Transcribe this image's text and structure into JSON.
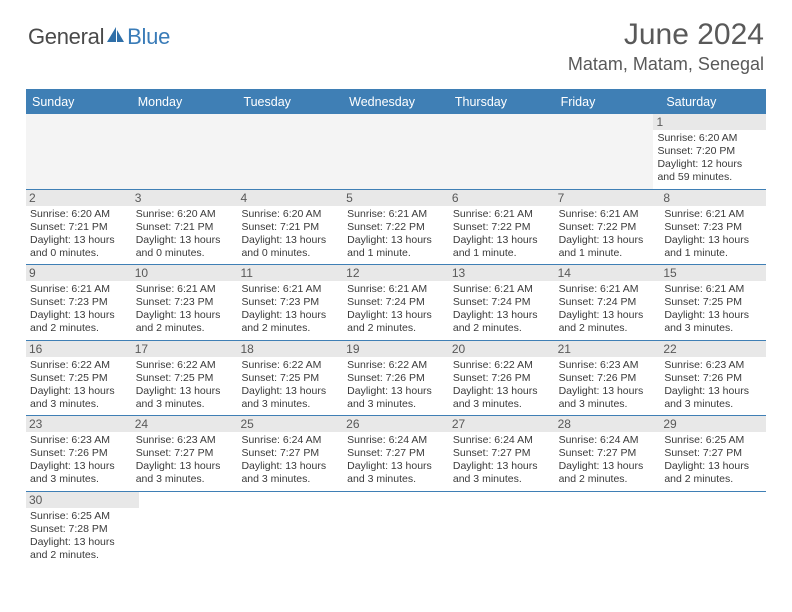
{
  "logo": {
    "part1": "General",
    "part2": "Blue"
  },
  "title": "June 2024",
  "location": "Matam, Matam, Senegal",
  "colors": {
    "header_bg": "#3f7fb5",
    "header_text": "#ffffff",
    "daynum_bg": "#e8e8e8",
    "text_gray": "#595959",
    "info_text": "#3a3a3a",
    "border": "#3f7fb5",
    "logo_blue": "#3a7cb8"
  },
  "day_headers": [
    "Sunday",
    "Monday",
    "Tuesday",
    "Wednesday",
    "Thursday",
    "Friday",
    "Saturday"
  ],
  "weeks": [
    [
      null,
      null,
      null,
      null,
      null,
      null,
      {
        "n": "1",
        "sunrise": "Sunrise: 6:20 AM",
        "sunset": "Sunset: 7:20 PM",
        "daylight": "Daylight: 12 hours and 59 minutes."
      }
    ],
    [
      {
        "n": "2",
        "sunrise": "Sunrise: 6:20 AM",
        "sunset": "Sunset: 7:21 PM",
        "daylight": "Daylight: 13 hours and 0 minutes."
      },
      {
        "n": "3",
        "sunrise": "Sunrise: 6:20 AM",
        "sunset": "Sunset: 7:21 PM",
        "daylight": "Daylight: 13 hours and 0 minutes."
      },
      {
        "n": "4",
        "sunrise": "Sunrise: 6:20 AM",
        "sunset": "Sunset: 7:21 PM",
        "daylight": "Daylight: 13 hours and 0 minutes."
      },
      {
        "n": "5",
        "sunrise": "Sunrise: 6:21 AM",
        "sunset": "Sunset: 7:22 PM",
        "daylight": "Daylight: 13 hours and 1 minute."
      },
      {
        "n": "6",
        "sunrise": "Sunrise: 6:21 AM",
        "sunset": "Sunset: 7:22 PM",
        "daylight": "Daylight: 13 hours and 1 minute."
      },
      {
        "n": "7",
        "sunrise": "Sunrise: 6:21 AM",
        "sunset": "Sunset: 7:22 PM",
        "daylight": "Daylight: 13 hours and 1 minute."
      },
      {
        "n": "8",
        "sunrise": "Sunrise: 6:21 AM",
        "sunset": "Sunset: 7:23 PM",
        "daylight": "Daylight: 13 hours and 1 minute."
      }
    ],
    [
      {
        "n": "9",
        "sunrise": "Sunrise: 6:21 AM",
        "sunset": "Sunset: 7:23 PM",
        "daylight": "Daylight: 13 hours and 2 minutes."
      },
      {
        "n": "10",
        "sunrise": "Sunrise: 6:21 AM",
        "sunset": "Sunset: 7:23 PM",
        "daylight": "Daylight: 13 hours and 2 minutes."
      },
      {
        "n": "11",
        "sunrise": "Sunrise: 6:21 AM",
        "sunset": "Sunset: 7:23 PM",
        "daylight": "Daylight: 13 hours and 2 minutes."
      },
      {
        "n": "12",
        "sunrise": "Sunrise: 6:21 AM",
        "sunset": "Sunset: 7:24 PM",
        "daylight": "Daylight: 13 hours and 2 minutes."
      },
      {
        "n": "13",
        "sunrise": "Sunrise: 6:21 AM",
        "sunset": "Sunset: 7:24 PM",
        "daylight": "Daylight: 13 hours and 2 minutes."
      },
      {
        "n": "14",
        "sunrise": "Sunrise: 6:21 AM",
        "sunset": "Sunset: 7:24 PM",
        "daylight": "Daylight: 13 hours and 2 minutes."
      },
      {
        "n": "15",
        "sunrise": "Sunrise: 6:21 AM",
        "sunset": "Sunset: 7:25 PM",
        "daylight": "Daylight: 13 hours and 3 minutes."
      }
    ],
    [
      {
        "n": "16",
        "sunrise": "Sunrise: 6:22 AM",
        "sunset": "Sunset: 7:25 PM",
        "daylight": "Daylight: 13 hours and 3 minutes."
      },
      {
        "n": "17",
        "sunrise": "Sunrise: 6:22 AM",
        "sunset": "Sunset: 7:25 PM",
        "daylight": "Daylight: 13 hours and 3 minutes."
      },
      {
        "n": "18",
        "sunrise": "Sunrise: 6:22 AM",
        "sunset": "Sunset: 7:25 PM",
        "daylight": "Daylight: 13 hours and 3 minutes."
      },
      {
        "n": "19",
        "sunrise": "Sunrise: 6:22 AM",
        "sunset": "Sunset: 7:26 PM",
        "daylight": "Daylight: 13 hours and 3 minutes."
      },
      {
        "n": "20",
        "sunrise": "Sunrise: 6:22 AM",
        "sunset": "Sunset: 7:26 PM",
        "daylight": "Daylight: 13 hours and 3 minutes."
      },
      {
        "n": "21",
        "sunrise": "Sunrise: 6:23 AM",
        "sunset": "Sunset: 7:26 PM",
        "daylight": "Daylight: 13 hours and 3 minutes."
      },
      {
        "n": "22",
        "sunrise": "Sunrise: 6:23 AM",
        "sunset": "Sunset: 7:26 PM",
        "daylight": "Daylight: 13 hours and 3 minutes."
      }
    ],
    [
      {
        "n": "23",
        "sunrise": "Sunrise: 6:23 AM",
        "sunset": "Sunset: 7:26 PM",
        "daylight": "Daylight: 13 hours and 3 minutes."
      },
      {
        "n": "24",
        "sunrise": "Sunrise: 6:23 AM",
        "sunset": "Sunset: 7:27 PM",
        "daylight": "Daylight: 13 hours and 3 minutes."
      },
      {
        "n": "25",
        "sunrise": "Sunrise: 6:24 AM",
        "sunset": "Sunset: 7:27 PM",
        "daylight": "Daylight: 13 hours and 3 minutes."
      },
      {
        "n": "26",
        "sunrise": "Sunrise: 6:24 AM",
        "sunset": "Sunset: 7:27 PM",
        "daylight": "Daylight: 13 hours and 3 minutes."
      },
      {
        "n": "27",
        "sunrise": "Sunrise: 6:24 AM",
        "sunset": "Sunset: 7:27 PM",
        "daylight": "Daylight: 13 hours and 3 minutes."
      },
      {
        "n": "28",
        "sunrise": "Sunrise: 6:24 AM",
        "sunset": "Sunset: 7:27 PM",
        "daylight": "Daylight: 13 hours and 2 minutes."
      },
      {
        "n": "29",
        "sunrise": "Sunrise: 6:25 AM",
        "sunset": "Sunset: 7:27 PM",
        "daylight": "Daylight: 13 hours and 2 minutes."
      }
    ],
    [
      {
        "n": "30",
        "sunrise": "Sunrise: 6:25 AM",
        "sunset": "Sunset: 7:28 PM",
        "daylight": "Daylight: 13 hours and 2 minutes."
      },
      null,
      null,
      null,
      null,
      null,
      null
    ]
  ]
}
